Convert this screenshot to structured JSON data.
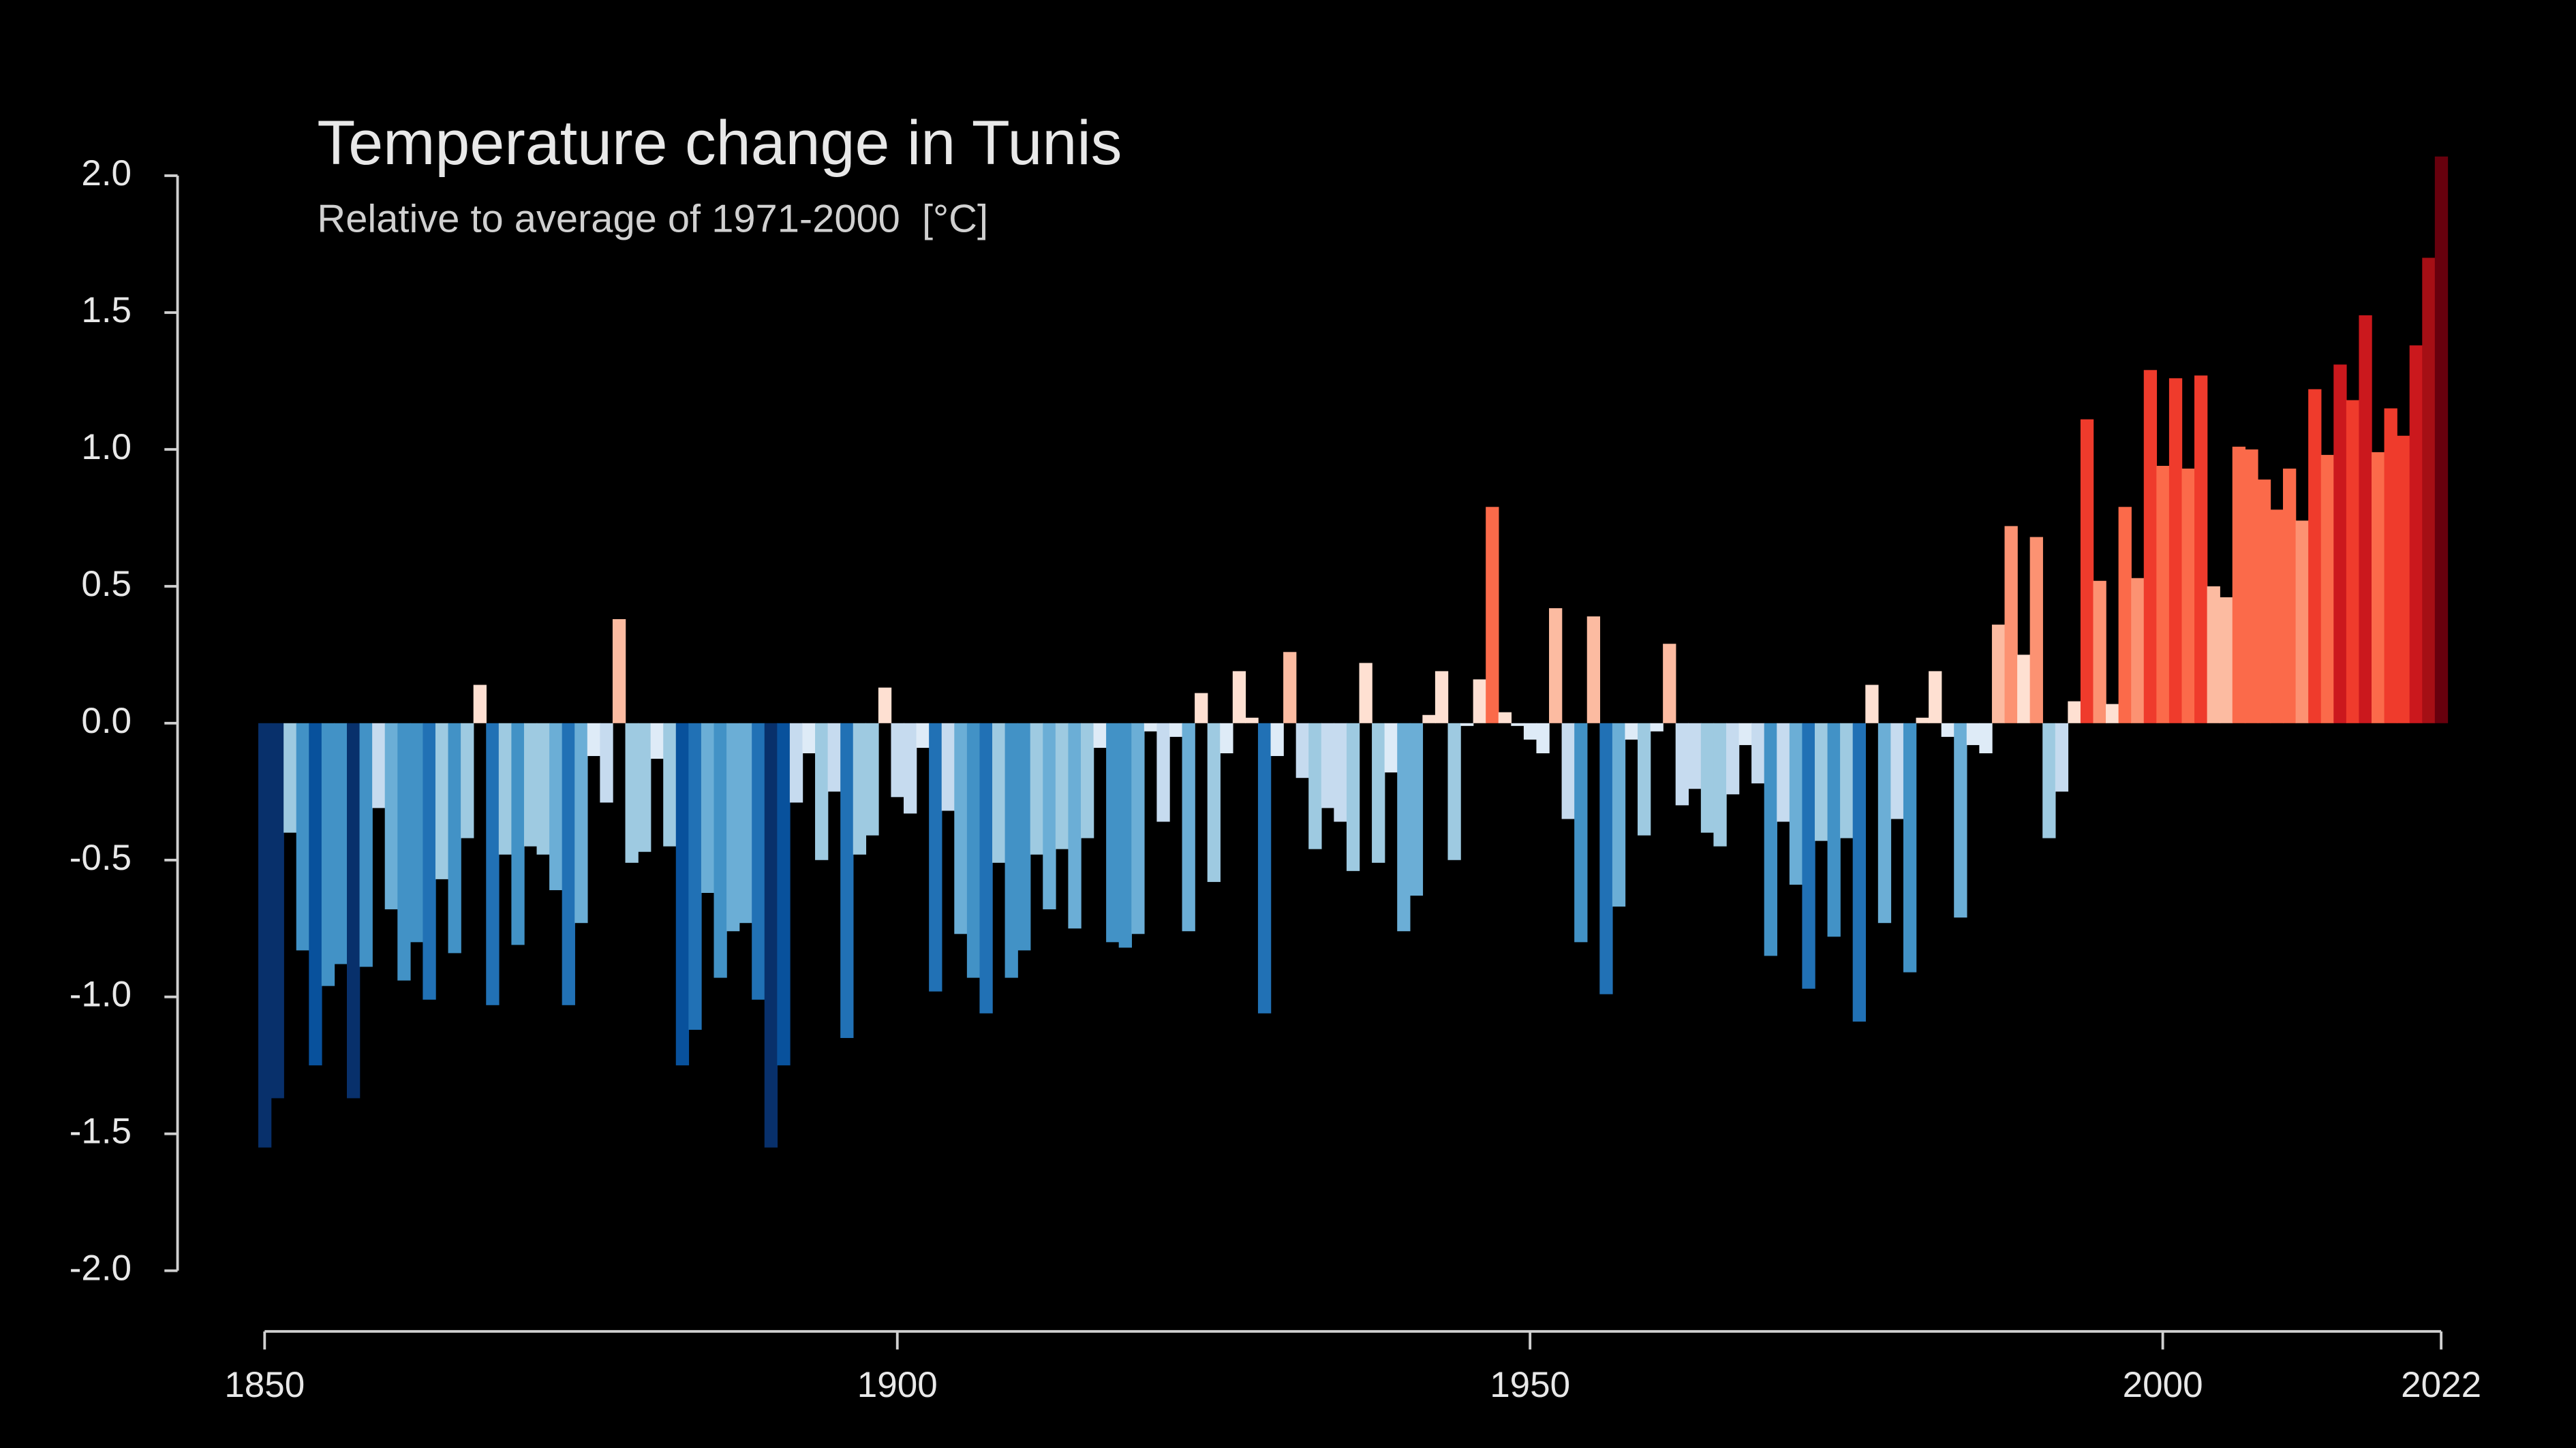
{
  "chart_data": {
    "type": "bar",
    "title": "Temperature change in Tunis",
    "subtitle": "Relative to average of 1971-2000  [°C]",
    "x": [
      1850,
      1851,
      1852,
      1853,
      1854,
      1855,
      1856,
      1857,
      1858,
      1859,
      1860,
      1861,
      1862,
      1863,
      1864,
      1865,
      1866,
      1867,
      1868,
      1869,
      1870,
      1871,
      1872,
      1873,
      1874,
      1875,
      1876,
      1877,
      1878,
      1879,
      1880,
      1881,
      1882,
      1883,
      1884,
      1885,
      1886,
      1887,
      1888,
      1889,
      1890,
      1891,
      1892,
      1893,
      1894,
      1895,
      1896,
      1897,
      1898,
      1899,
      1900,
      1901,
      1902,
      1903,
      1904,
      1905,
      1906,
      1907,
      1908,
      1909,
      1910,
      1911,
      1912,
      1913,
      1914,
      1915,
      1916,
      1917,
      1918,
      1919,
      1920,
      1921,
      1922,
      1923,
      1924,
      1925,
      1926,
      1927,
      1928,
      1929,
      1930,
      1931,
      1932,
      1933,
      1934,
      1935,
      1936,
      1937,
      1938,
      1939,
      1940,
      1941,
      1942,
      1943,
      1944,
      1945,
      1946,
      1947,
      1948,
      1949,
      1950,
      1951,
      1952,
      1953,
      1954,
      1955,
      1956,
      1957,
      1958,
      1959,
      1960,
      1961,
      1962,
      1963,
      1964,
      1965,
      1966,
      1967,
      1968,
      1969,
      1970,
      1971,
      1972,
      1973,
      1974,
      1975,
      1976,
      1977,
      1978,
      1979,
      1980,
      1981,
      1982,
      1983,
      1984,
      1985,
      1986,
      1987,
      1988,
      1989,
      1990,
      1991,
      1992,
      1993,
      1994,
      1995,
      1996,
      1997,
      1998,
      1999,
      2000,
      2001,
      2002,
      2003,
      2004,
      2005,
      2006,
      2007,
      2008,
      2009,
      2010,
      2011,
      2012,
      2013,
      2014,
      2015,
      2016,
      2017,
      2018,
      2019,
      2020,
      2021,
      2022
    ],
    "values": [
      -1.55,
      -1.37,
      -0.4,
      -0.83,
      -1.25,
      -0.96,
      -0.88,
      -1.37,
      -0.89,
      -0.31,
      -0.68,
      -0.94,
      -0.8,
      -1.01,
      -0.57,
      -0.84,
      -0.42,
      0.14,
      -1.03,
      -0.48,
      -0.81,
      -0.45,
      -0.48,
      -0.61,
      -1.03,
      -0.73,
      -0.12,
      -0.29,
      0.38,
      -0.51,
      -0.47,
      -0.13,
      -0.45,
      -1.25,
      -1.12,
      -0.62,
      -0.93,
      -0.76,
      -0.73,
      -1.01,
      -1.55,
      -1.25,
      -0.29,
      -0.11,
      -0.5,
      -0.25,
      -1.15,
      -0.48,
      -0.41,
      0.13,
      -0.27,
      -0.33,
      -0.09,
      -0.98,
      -0.32,
      -0.77,
      -0.93,
      -1.06,
      -0.51,
      -0.93,
      -0.83,
      -0.48,
      -0.68,
      -0.46,
      -0.75,
      -0.42,
      -0.09,
      -0.8,
      -0.82,
      -0.77,
      -0.03,
      -0.36,
      -0.05,
      -0.76,
      0.11,
      -0.58,
      -0.11,
      0.19,
      0.02,
      -1.06,
      -0.12,
      0.26,
      -0.2,
      -0.46,
      -0.31,
      -0.36,
      -0.54,
      0.22,
      -0.51,
      -0.18,
      -0.76,
      -0.63,
      0.03,
      0.19,
      -0.5,
      -0.01,
      0.16,
      0.79,
      0.04,
      -0.01,
      -0.06,
      -0.11,
      0.42,
      -0.35,
      -0.8,
      0.39,
      -0.99,
      -0.67,
      -0.06,
      -0.41,
      -0.03,
      0.29,
      -0.3,
      -0.24,
      -0.4,
      -0.45,
      -0.26,
      -0.08,
      -0.22,
      -0.85,
      -0.36,
      -0.59,
      -0.97,
      -0.43,
      -0.78,
      -0.42,
      -1.09,
      0.14,
      -0.73,
      -0.35,
      -0.91,
      0.02,
      0.19,
      -0.05,
      -0.71,
      -0.08,
      -0.11,
      0.36,
      0.72,
      0.25,
      0.68,
      -0.42,
      -0.25,
      0.08,
      1.11,
      0.52,
      0.07,
      0.79,
      0.53,
      1.29,
      0.94,
      1.26,
      0.93,
      1.27,
      0.5,
      0.46,
      1.01,
      1.0,
      0.89,
      0.78,
      0.93,
      0.74,
      1.22,
      0.98,
      1.31,
      1.18,
      1.49,
      0.99,
      1.15,
      1.05,
      1.38,
      1.7,
      2.07
    ],
    "colormap": [
      "#08306b",
      "#08519c",
      "#2171b5",
      "#4292c6",
      "#6baed6",
      "#9ecae1",
      "#c6dbef",
      "#deebf7",
      "#fee0d2",
      "#fcbba1",
      "#fc9272",
      "#fb6a4a",
      "#ef3b2c",
      "#cb181d",
      "#a50f15",
      "#67000d"
    ],
    "xlim": [
      1850,
      2022
    ],
    "xticks": [
      1850,
      1900,
      1950,
      2000,
      2022
    ],
    "ylim": [
      -2,
      2
    ],
    "yticks": [
      {
        "value": -2,
        "label": "-2.0"
      },
      -1.5,
      {
        "value": -1,
        "label": "-1.0"
      },
      -0.5,
      {
        "value": 0,
        "label": "0.0"
      },
      0.5,
      {
        "value": 1,
        "label": "1.0"
      },
      1.5,
      {
        "value": 2,
        "label": "2.0"
      }
    ]
  }
}
